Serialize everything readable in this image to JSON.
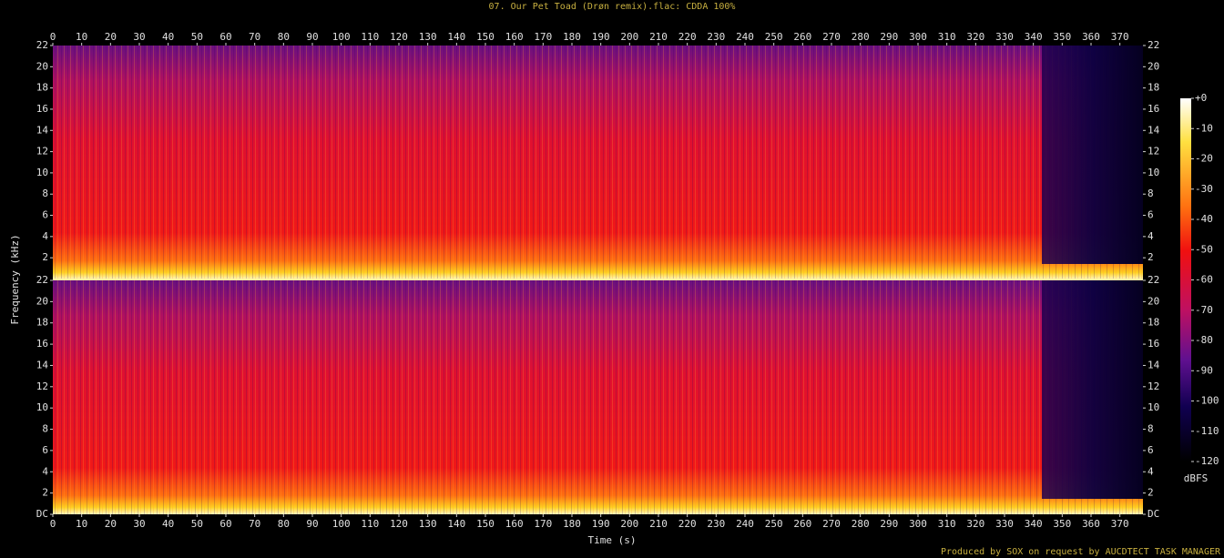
{
  "chart_data": {
    "type": "spectrogram",
    "title": "07. Our Pet Toad (Drøn remix).flac: CDDA 100%",
    "xlabel": "Time (s)",
    "ylabel": "Frequency (kHz)",
    "xlim": [
      0,
      378
    ],
    "xticks": [
      0,
      10,
      20,
      30,
      40,
      50,
      60,
      70,
      80,
      90,
      100,
      110,
      120,
      130,
      140,
      150,
      160,
      170,
      180,
      190,
      200,
      210,
      220,
      230,
      240,
      250,
      260,
      270,
      280,
      290,
      300,
      310,
      320,
      330,
      340,
      350,
      360,
      370
    ],
    "ylim": [
      0,
      22
    ],
    "yticks": [
      {
        "value": 0,
        "label": "DC"
      },
      2,
      4,
      6,
      8,
      10,
      12,
      14,
      16,
      18,
      20,
      22
    ],
    "zlim": [
      -120,
      0
    ],
    "zticks": [
      {
        "value": 0,
        "label": "+0"
      },
      -10,
      -20,
      -30,
      -40,
      -50,
      -60,
      -70,
      -80,
      -90,
      -100,
      -110,
      -120
    ],
    "zlabel": "dBFS",
    "footer": "Produced by SOX on request by AUCDTECT TASK MANAGER"
  }
}
